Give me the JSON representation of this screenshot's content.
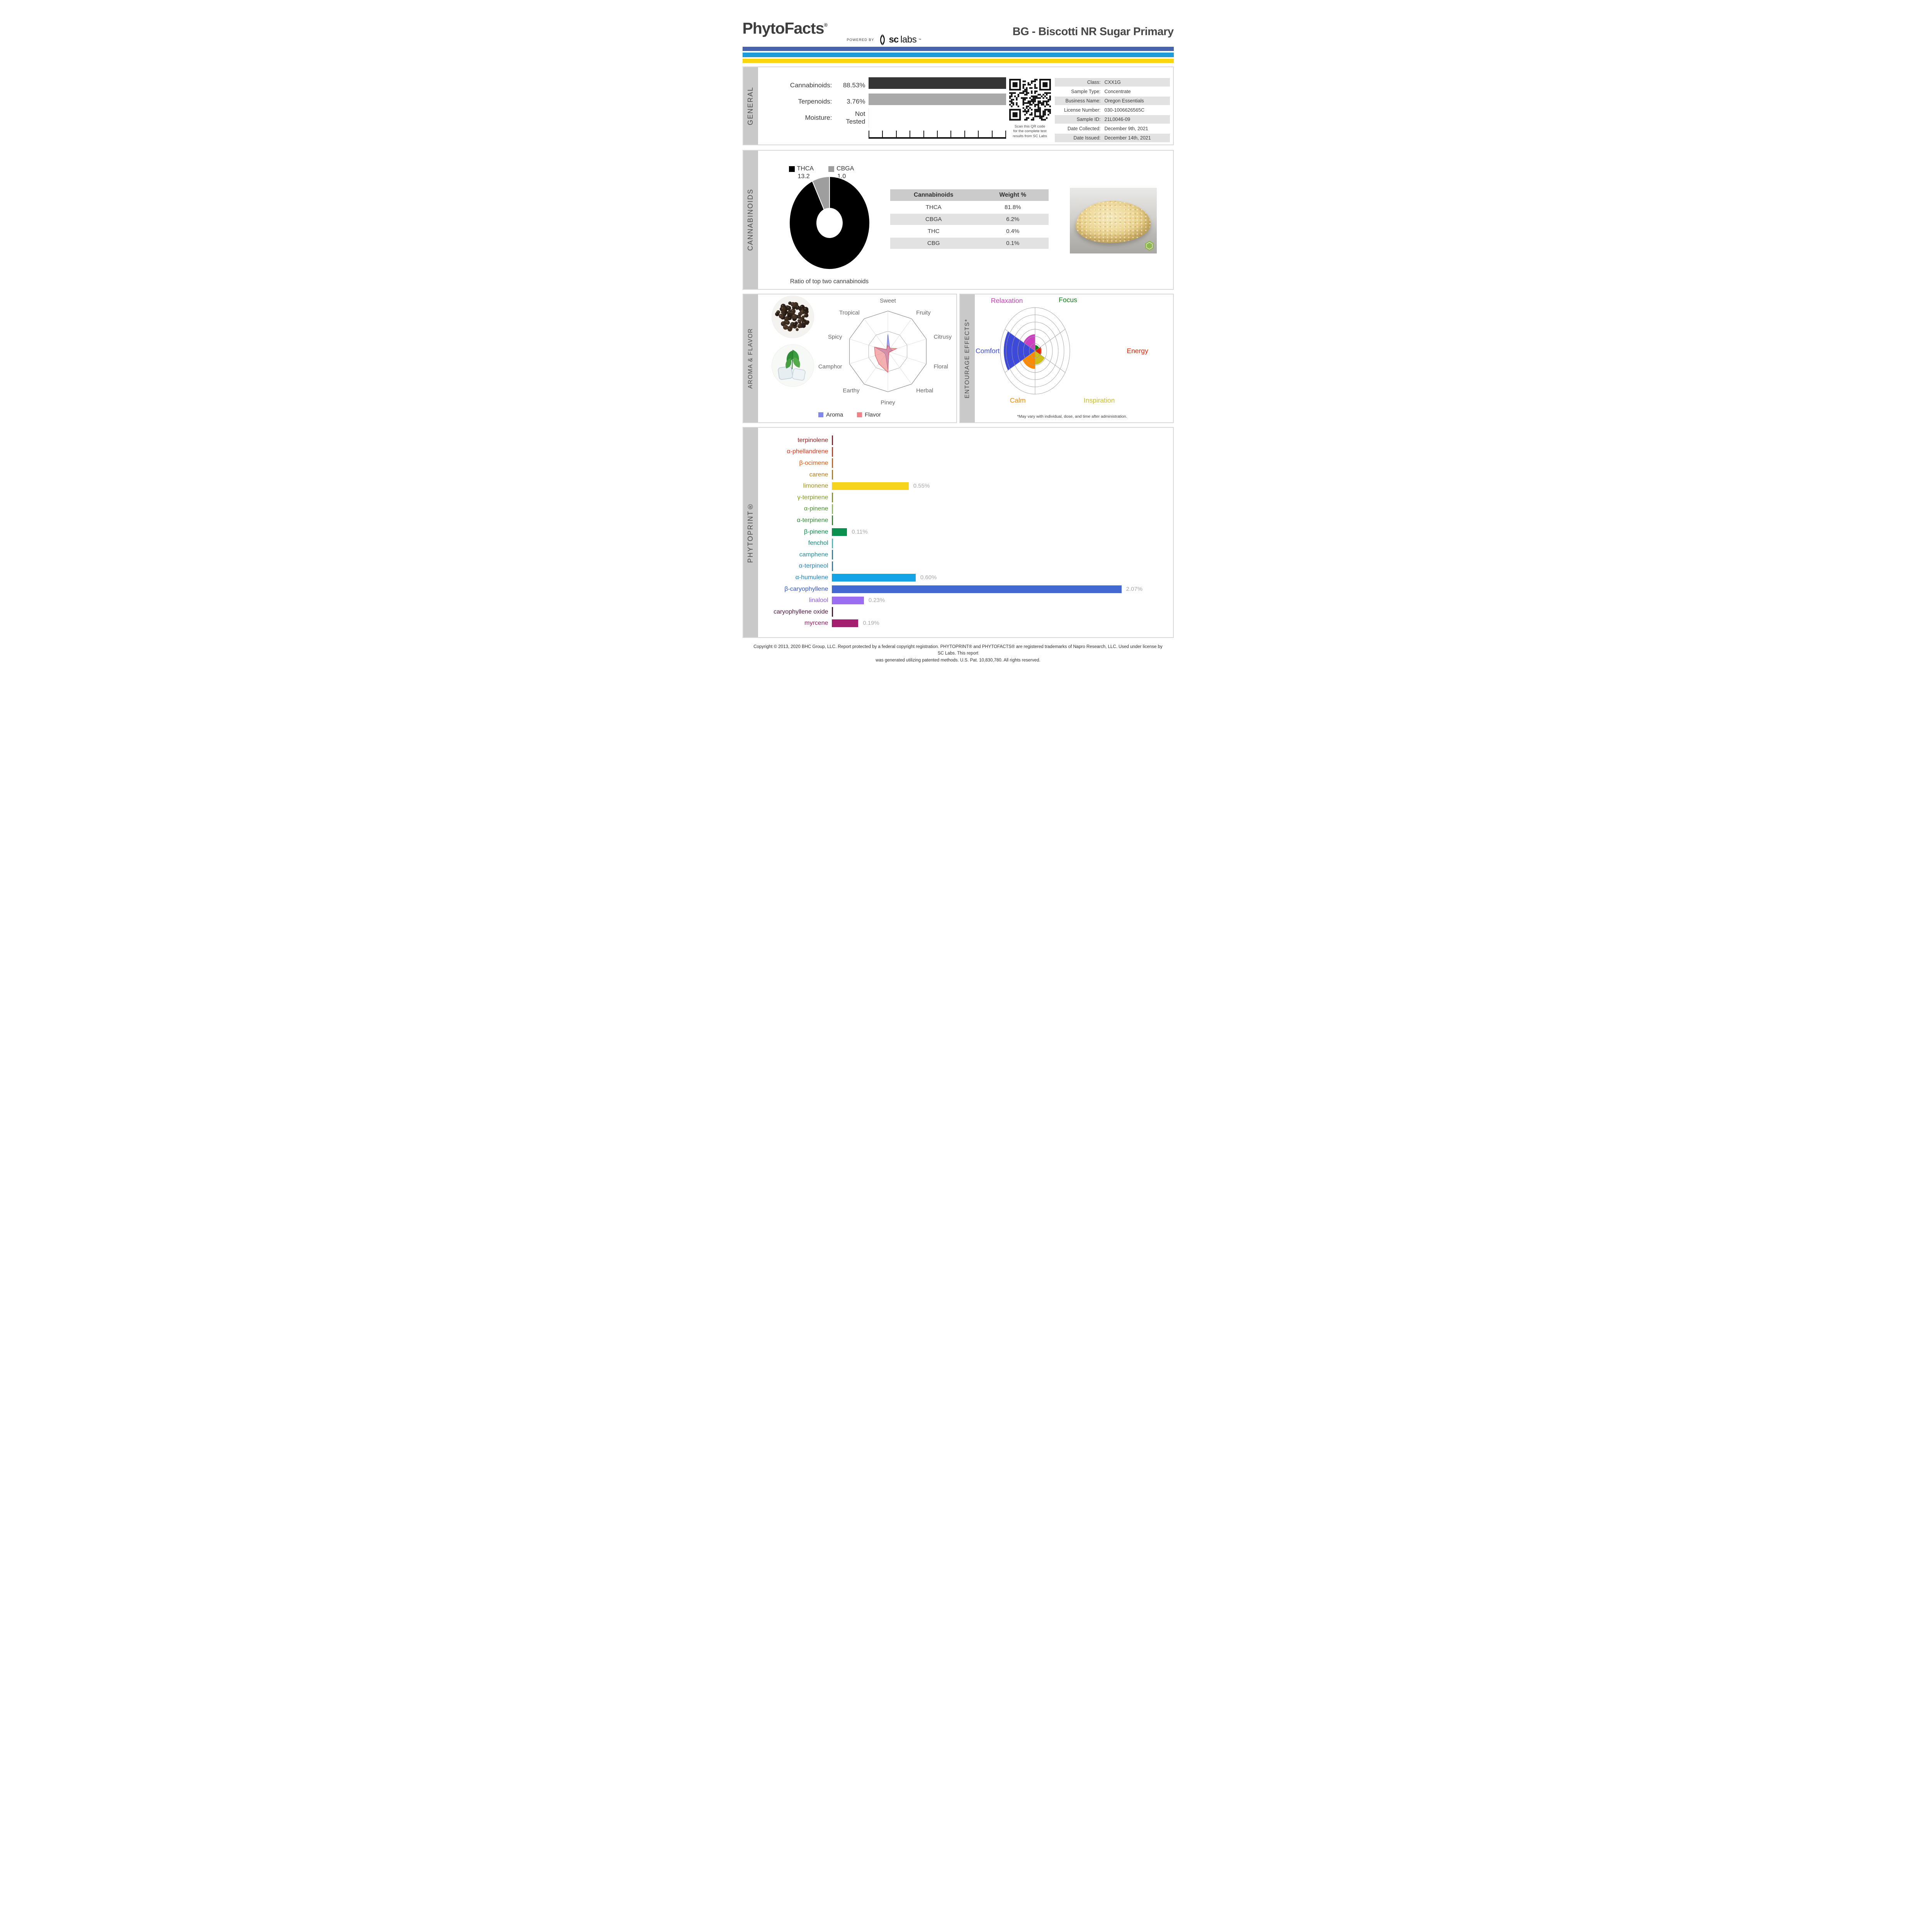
{
  "header": {
    "brand": "PhytoFacts",
    "brand_reg": "®",
    "powered_by": "POWERED BY",
    "lab_logo_sc": "sc",
    "lab_logo_labs": "labs",
    "lab_logo_tm": "™",
    "title": "BG - Biscotti NR Sugar Primary",
    "stripe_colors": [
      "#4a63ad",
      "#1f9cd7",
      "#fbd50e"
    ]
  },
  "general": {
    "section_label": "GENERAL",
    "rows": [
      {
        "label": "Cannabinoids:",
        "value": "88.53%"
      },
      {
        "label": "Terpenoids:",
        "value": "3.76%"
      },
      {
        "label": "Moisture:",
        "value": "Not Tested"
      }
    ],
    "qr_caption_lines": [
      "Scan this QR code",
      "for the complete test",
      "results from SC Labs"
    ],
    "info_rows": [
      {
        "label": "Class:",
        "value": "CXX1G"
      },
      {
        "label": "Sample Type:",
        "value": "Concentrate"
      },
      {
        "label": "Business Name:",
        "value": "Oregon Essentials"
      },
      {
        "label": "License Number:",
        "value": "030-1006626565C"
      },
      {
        "label": "Sample ID:",
        "value": "21L0046-09"
      },
      {
        "label": "Date Collected:",
        "value": "December 9th, 2021"
      },
      {
        "label": "Date Issued:",
        "value": "December 14th, 2021"
      }
    ]
  },
  "cannabinoids": {
    "section_label": "CANNABINOIDS",
    "legend": [
      {
        "name": "THCA",
        "value": "13.2",
        "color": "#000000"
      },
      {
        "name": "CBGA",
        "value": "1.0",
        "color": "#9e9e9e"
      }
    ],
    "caption": "Ratio of top two cannabinoids"
  },
  "aroma_flavor": {
    "section_label": "AROMA & FLAVOR",
    "legend": [
      {
        "name": "Aroma",
        "color": "#8288e8"
      },
      {
        "name": "Flavor",
        "color": "#ef8286"
      }
    ]
  },
  "entourage": {
    "section_label": "ENTOURAGE EFFECTS*",
    "note": "*May vary with individual, dose, and time after administration."
  },
  "phytoprint": {
    "section_label": "PHYTOPRINT®"
  },
  "footer": {
    "line1": "Copyright © 2013, 2020 BHC Group, LLC. Report protected by a federal copyright registration. PHYTOPRINT® and PHYTOFACTS® are registered trademarks of Napro Research, LLC. Used under license by SC Labs. This report",
    "line2": "was generated utilizing patented methods. U.S. Pat. 10,830,780. All rights reserved."
  },
  "chart_data": [
    {
      "id": "general_levels",
      "type": "bar",
      "title": "General composition",
      "categories": [
        "Cannabinoids",
        "Terpenoids"
      ],
      "values": [
        88.53,
        3.76
      ],
      "unit": "%",
      "note": "Moisture: Not Tested",
      "bar_colors": [
        "#353535",
        "#a9a9a9"
      ]
    },
    {
      "id": "cannabinoid_ratio",
      "type": "pie",
      "title": "Ratio of top two cannabinoids",
      "labels": [
        "THCA",
        "CBGA"
      ],
      "values": [
        13.2,
        1.0
      ],
      "colors": [
        "#000000",
        "#9e9e9e"
      ],
      "donut": true
    },
    {
      "id": "cannabinoid_table",
      "type": "table",
      "title": "Cannabinoids Weight %",
      "columns": [
        "Cannabinoids",
        "Weight %"
      ],
      "rows": [
        [
          "THCA",
          "81.8%"
        ],
        [
          "CBGA",
          "6.2%"
        ],
        [
          "THC",
          "0.4%"
        ],
        [
          "CBG",
          "0.1%"
        ]
      ]
    },
    {
      "id": "aroma_flavor_radar",
      "type": "radar",
      "title": "Aroma & Flavor",
      "axes": [
        "Sweet",
        "Fruity",
        "Citrusy",
        "Floral",
        "Herbal",
        "Piney",
        "Earthy",
        "Camphor",
        "Spicy",
        "Tropical"
      ],
      "scale": [
        0,
        1
      ],
      "grid_levels": [
        1,
        0.5
      ],
      "series": [
        {
          "name": "Aroma",
          "color": "#7b82e4",
          "stroke": "#5f66d6",
          "values": [
            0.42,
            0.08,
            0.12,
            0.04,
            0.04,
            0.45,
            0.1,
            0.1,
            0.33,
            0.05
          ]
        },
        {
          "name": "Flavor",
          "color": "#ee8080",
          "stroke": "#e05a5e",
          "values": [
            0.15,
            0.1,
            0.23,
            0.05,
            0.04,
            0.52,
            0.38,
            0.33,
            0.35,
            0.06
          ]
        }
      ]
    },
    {
      "id": "entourage_rose",
      "type": "rose",
      "title": "Entourage Effects",
      "rings": 6,
      "sectors": [
        {
          "name": "Focus",
          "start": 0,
          "value": 0.8,
          "color": "#0e7d12"
        },
        {
          "name": "Energy",
          "start": 60,
          "value": 1.1,
          "color": "#e32200"
        },
        {
          "name": "Inspiration",
          "start": 120,
          "value": 1.9,
          "color": "#cfc018"
        },
        {
          "name": "Calm",
          "start": 180,
          "value": 2.5,
          "color": "#fd8a00"
        },
        {
          "name": "Comfort",
          "start": 240,
          "value": 5.4,
          "color": "#3d49d8"
        },
        {
          "name": "Relaxation",
          "start": 300,
          "value": 2.3,
          "color": "#cc3fc0"
        }
      ]
    },
    {
      "id": "phytoprint_terpenes",
      "type": "bar",
      "title": "PHYTOPRINT® terpene profile",
      "unit": "%",
      "value_text_color": "#a8a8a8",
      "items": [
        {
          "name": "terpinolene",
          "value": 0,
          "display": null,
          "label_color": "#a51e25",
          "bar_color": "#a51e25"
        },
        {
          "name": "α-phellandrene",
          "value": 0,
          "display": null,
          "label_color": "#de3a1b",
          "bar_color": "#de3a1b"
        },
        {
          "name": "β-ocimene",
          "value": 0,
          "display": null,
          "label_color": "#e25d13",
          "bar_color": "#e25d13"
        },
        {
          "name": "carene",
          "value": 0,
          "display": null,
          "label_color": "#bf7d16",
          "bar_color": "#bf7d16"
        },
        {
          "name": "limonene",
          "value": 0.55,
          "display": "0.55%",
          "label_color": "#a39311",
          "bar_color": "#f6d41e"
        },
        {
          "name": "γ-terpinene",
          "value": 0,
          "display": null,
          "label_color": "#7f9c1c",
          "bar_color": "#7f9c1c"
        },
        {
          "name": "α-pinene",
          "value": 0,
          "display": null,
          "label_color": "#4a9627",
          "bar_color": "#8bc34a"
        },
        {
          "name": "α-terpinene",
          "value": 0,
          "display": null,
          "label_color": "#2e9132",
          "bar_color": "#2e9132"
        },
        {
          "name": "β-pinene",
          "value": 0.11,
          "display": "0.11%",
          "label_color": "#0c8f4d",
          "bar_color": "#0a9150"
        },
        {
          "name": "fenchol",
          "value": 0,
          "display": null,
          "label_color": "#108a7e",
          "bar_color": "#35c4cf"
        },
        {
          "name": "camphene",
          "value": 0,
          "display": null,
          "label_color": "#24909f",
          "bar_color": "#24909f"
        },
        {
          "name": "α-terpineol",
          "value": 0,
          "display": null,
          "label_color": "#2b84b6",
          "bar_color": "#2b84b6"
        },
        {
          "name": "α-humulene",
          "value": 0.6,
          "display": "0.60%",
          "label_color": "#1a86c9",
          "bar_color": "#14a3e6"
        },
        {
          "name": "β-caryophyllene",
          "value": 2.07,
          "display": "2.07%",
          "label_color": "#3057cf",
          "bar_color": "#4168d3"
        },
        {
          "name": "linalool",
          "value": 0.23,
          "display": "0.23%",
          "label_color": "#9158ec",
          "bar_color": "#9b6df0"
        },
        {
          "name": "caryophyllene oxide",
          "value": 0,
          "display": null,
          "label_color": "#541741",
          "bar_color": "#541741"
        },
        {
          "name": "myrcene",
          "value": 0.19,
          "display": "0.19%",
          "label_color": "#9d1b65",
          "bar_color": "#a41f6e"
        }
      ]
    }
  ]
}
